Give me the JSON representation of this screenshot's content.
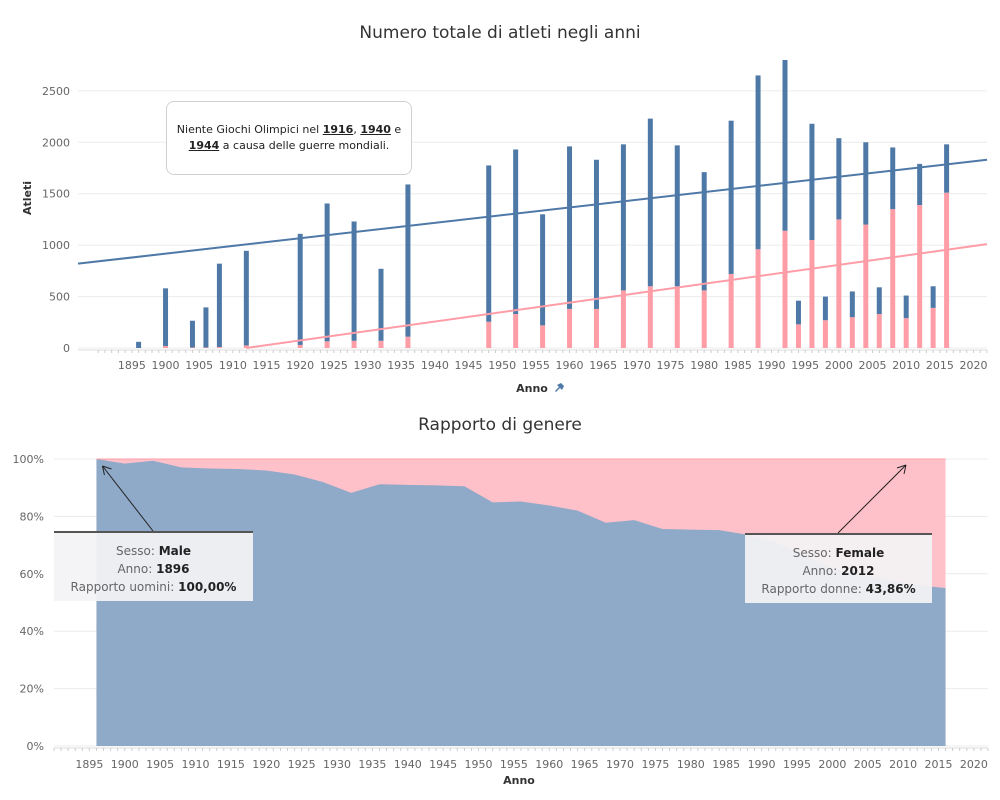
{
  "chart_data": [
    {
      "type": "bar",
      "title": "Numero totale di atleti negli anni",
      "xlabel": "Anno",
      "ylabel": "Atleti",
      "ylim": [
        0,
        2800
      ],
      "xlim": [
        1887,
        2022
      ],
      "yticks": [
        0,
        500,
        1000,
        1500,
        2000,
        2500
      ],
      "xticks": [
        1895,
        1900,
        1905,
        1910,
        1915,
        1920,
        1925,
        1930,
        1935,
        1940,
        1945,
        1950,
        1955,
        1960,
        1965,
        1970,
        1975,
        1980,
        1985,
        1990,
        1995,
        2000,
        2005,
        2010,
        2015,
        2020
      ],
      "stacked": true,
      "x": [
        1896,
        1900,
        1904,
        1906,
        1908,
        1912,
        1920,
        1924,
        1928,
        1932,
        1936,
        1948,
        1952,
        1956,
        1960,
        1964,
        1968,
        1972,
        1976,
        1980,
        1984,
        1988,
        1992,
        1994,
        1996,
        1998,
        2000,
        2002,
        2004,
        2006,
        2008,
        2010,
        2012,
        2014,
        2016
      ],
      "series": [
        {
          "name": "Male",
          "color": "#4e79a7",
          "values": [
            60,
            560,
            260,
            390,
            810,
            920,
            1080,
            1340,
            1160,
            700,
            1480,
            1520,
            1600,
            1080,
            1580,
            1450,
            1420,
            1630,
            1370,
            1150,
            1490,
            1690,
            1660,
            230,
            1130,
            230,
            790,
            250,
            800,
            260,
            600,
            220,
            400,
            210,
            470
          ]
        },
        {
          "name": "Female",
          "color": "#ff9da7",
          "values": [
            0,
            20,
            5,
            5,
            10,
            25,
            30,
            65,
            70,
            70,
            110,
            255,
            330,
            220,
            380,
            380,
            560,
            600,
            600,
            560,
            720,
            960,
            1140,
            230,
            1050,
            270,
            1250,
            300,
            1200,
            330,
            1350,
            290,
            1390,
            390,
            1510
          ]
        }
      ],
      "trendlines": [
        {
          "series": "Male",
          "from": [
            1887,
            820
          ],
          "to": [
            2022,
            1830
          ]
        },
        {
          "series": "Female",
          "from": [
            1912,
            0
          ],
          "to": [
            2022,
            1010
          ]
        }
      ],
      "annotation": {
        "before": "Niente Giochi Olimpici nel ",
        "y1": "1916",
        "sep": ", ",
        "y2": "1940",
        "and": " e",
        "y3": "1944",
        "after": " a causa delle guerre mondiali."
      }
    },
    {
      "type": "area",
      "title": "Rapporto di genere",
      "xlabel": "Anno",
      "ylabel": "",
      "ylim": [
        0,
        100
      ],
      "xlim": [
        1890,
        2022
      ],
      "yticks": [
        "0%",
        "20%",
        "40%",
        "60%",
        "80%",
        "100%"
      ],
      "xticks": [
        1895,
        1900,
        1905,
        1910,
        1915,
        1920,
        1925,
        1930,
        1935,
        1940,
        1945,
        1950,
        1955,
        1960,
        1965,
        1970,
        1975,
        1980,
        1985,
        1990,
        1995,
        2000,
        2005,
        2010,
        2015,
        2020
      ],
      "stacked": true,
      "x": [
        1896,
        1900,
        1904,
        1908,
        1912,
        1916,
        1920,
        1924,
        1928,
        1932,
        1936,
        1940,
        1944,
        1948,
        1952,
        1956,
        1960,
        1964,
        1968,
        1972,
        1976,
        1980,
        1984,
        1988,
        1992,
        1996,
        2000,
        2004,
        2008,
        2012,
        2016
      ],
      "series": [
        {
          "name": "Male",
          "color": "#8fa9c8",
          "values": [
            100,
            98.4,
            99.4,
            97.1,
            96.7,
            96.5,
            96.0,
            94.6,
            92.0,
            88.2,
            91.2,
            91.0,
            90.8,
            90.5,
            84.9,
            85.2,
            83.8,
            82.0,
            77.8,
            78.7,
            75.6,
            75.4,
            75.2,
            73.6,
            70.9,
            66.6,
            61.7,
            59.7,
            57.7,
            56.1,
            55.0
          ]
        },
        {
          "name": "Female",
          "color": "#ffc1c9",
          "values": [
            0,
            1.6,
            0.6,
            2.9,
            3.3,
            3.5,
            4.0,
            5.4,
            8.0,
            11.8,
            8.8,
            9.0,
            9.2,
            9.5,
            15.1,
            14.8,
            16.2,
            18.0,
            22.2,
            21.3,
            24.4,
            24.6,
            24.8,
            26.4,
            29.1,
            33.4,
            38.3,
            40.3,
            42.3,
            43.9,
            45.0
          ]
        }
      ],
      "tooltips": [
        {
          "sesso_label": "Sesso:",
          "sesso": "Male",
          "anno_label": "Anno:",
          "anno": "1896",
          "ratio_label": "Rapporto uomini:",
          "ratio": "100,00%",
          "point": [
            1896,
            100
          ]
        },
        {
          "sesso_label": "Sesso:",
          "sesso": "Female",
          "anno_label": "Anno:",
          "anno": "2012",
          "ratio_label": "Rapporto donne:",
          "ratio": "43,86%",
          "point": [
            2012,
            100
          ]
        }
      ]
    }
  ]
}
